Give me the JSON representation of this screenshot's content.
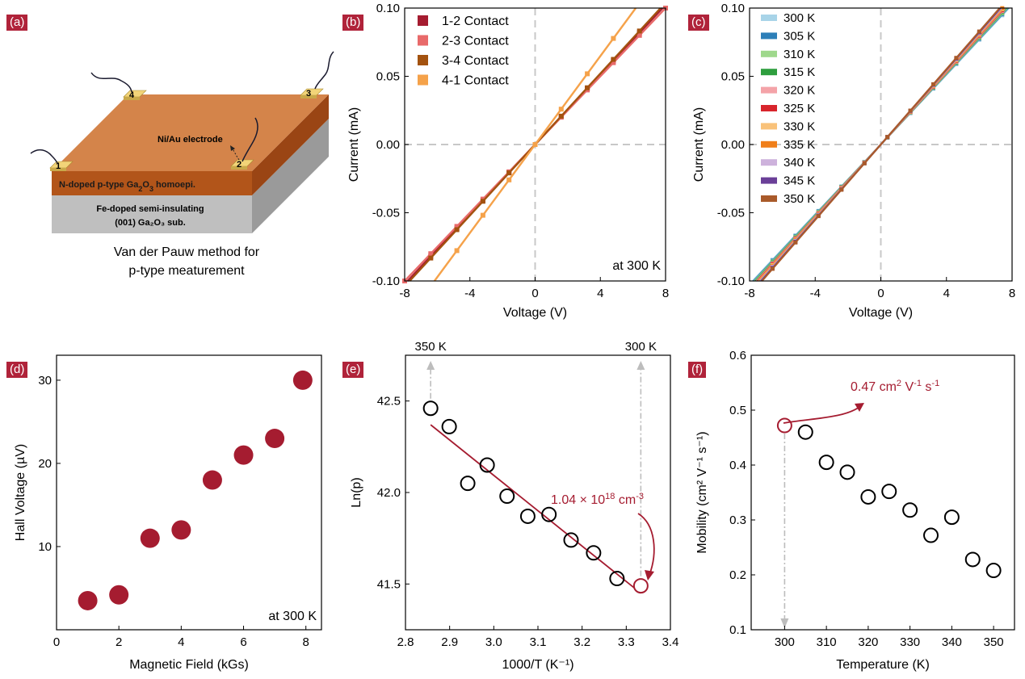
{
  "colors": {
    "accent": "#a51c30",
    "axis": "#000000",
    "dashed": "#c8c8c8",
    "orange_top": "#d4844a",
    "orange_side": "#b2551a",
    "gray_top": "#bfbfbf",
    "gray_side": "#9a9a9a",
    "contact": "#f2d478"
  },
  "panel_labels": [
    "(a)",
    "(b)",
    "(c)",
    "(d)",
    "(e)",
    "(f)"
  ],
  "schematic": {
    "contacts": [
      "1",
      "2",
      "3",
      "4"
    ],
    "electrode_label": "Ni/Au electrode",
    "layer_top_pre": "N-doped p-type Ga",
    "layer_top_sub1": "2",
    "layer_top_mid": "O",
    "layer_top_sub2": "3",
    "layer_top_post": " homoepi.",
    "layer_bottom_line1": "Fe-doped semi-insulating",
    "layer_bottom_line2": "(001) Ga₂O₃ sub.",
    "caption_line1": "Van der Pauw method for",
    "caption_line2": "p-type meaturement"
  },
  "chart_data": [
    {
      "id": "b",
      "type": "line",
      "xlabel": "Voltage (V)",
      "ylabel": "Current (mA)",
      "xlim": [
        -8,
        8
      ],
      "ylim": [
        -0.1,
        0.1
      ],
      "xticks": [
        "-8",
        "-4",
        "0",
        "4",
        "8"
      ],
      "yticks": [
        "0.10",
        "0.05",
        "0.00",
        "-0.05",
        "-0.10"
      ],
      "annotation": "at 300 K",
      "legend_position": "top-left",
      "series": [
        {
          "name": "1-2 Contact",
          "color": "#a51c30",
          "slope": 0.0128
        },
        {
          "name": "2-3 Contact",
          "color": "#e86a6a",
          "slope": 0.0125
        },
        {
          "name": "3-4 Contact",
          "color": "#a3520f",
          "slope": 0.013
        },
        {
          "name": "4-1 Contact",
          "color": "#f5a24a",
          "slope": 0.0162
        }
      ]
    },
    {
      "id": "c",
      "type": "line",
      "xlabel": "Voltage (V)",
      "ylabel": "Current (mA)",
      "xlim": [
        -8,
        8
      ],
      "ylim": [
        -0.1,
        0.1
      ],
      "xticks": [
        "-8",
        "-4",
        "0",
        "4",
        "8"
      ],
      "yticks": [
        "0.10",
        "0.05",
        "0.00",
        "-0.05",
        "-0.10"
      ],
      "legend_position": "top-left",
      "series": [
        {
          "name": "300 K",
          "color": "#a8d4e8",
          "slope": 0.0128
        },
        {
          "name": "305 K",
          "color": "#2d7fb8",
          "slope": 0.0129
        },
        {
          "name": "310 K",
          "color": "#9fd88c",
          "slope": 0.013
        },
        {
          "name": "315 K",
          "color": "#2e9e3e",
          "slope": 0.0131
        },
        {
          "name": "320 K",
          "color": "#f4a3a8",
          "slope": 0.0132
        },
        {
          "name": "325 K",
          "color": "#d8252c",
          "slope": 0.0133
        },
        {
          "name": "330 K",
          "color": "#f9c27a",
          "slope": 0.0134
        },
        {
          "name": "335 K",
          "color": "#f07f1a",
          "slope": 0.0135
        },
        {
          "name": "340 K",
          "color": "#cdb2dc",
          "slope": 0.0136
        },
        {
          "name": "345 K",
          "color": "#6a3f98",
          "slope": 0.0137
        },
        {
          "name": "350 K",
          "color": "#a95a2a",
          "slope": 0.0138
        }
      ]
    },
    {
      "id": "d",
      "type": "scatter",
      "xlabel": "Magnetic Field (kGs)",
      "ylabel": "Hall Voltage (µV)",
      "xlim": [
        0,
        8.5
      ],
      "ylim": [
        0,
        33
      ],
      "xticks": [
        "0",
        "2",
        "4",
        "6",
        "8"
      ],
      "yticks": [
        "10",
        "20",
        "30"
      ],
      "annotation": "at 300 K",
      "x": [
        1,
        2,
        3,
        4,
        5,
        6,
        7,
        7.9
      ],
      "y": [
        3.5,
        4.2,
        11,
        12,
        18,
        21,
        23,
        30
      ]
    },
    {
      "id": "e",
      "type": "scatter",
      "xlabel": "1000/T (K⁻¹)",
      "ylabel": "Ln(p)",
      "xlim": [
        2.8,
        3.4
      ],
      "ylim": [
        41.25,
        42.75
      ],
      "xticks": [
        "2.8",
        "2.9",
        "3.0",
        "3.1",
        "3.2",
        "3.3",
        "3.4"
      ],
      "yticks": [
        "42.5",
        "42.0",
        "41.5"
      ],
      "top_label_left": "350 K",
      "top_label_right": "300 K",
      "annotation_pre": "1.04 × 10",
      "annotation_sup": "18",
      "annotation_mid": " cm",
      "annotation_sup2": "-3",
      "x": [
        2.857,
        2.899,
        2.941,
        2.985,
        3.03,
        3.077,
        3.125,
        3.175,
        3.226,
        3.279
      ],
      "y": [
        42.46,
        42.36,
        42.05,
        42.15,
        41.98,
        41.87,
        41.88,
        41.74,
        41.67,
        41.53
      ],
      "highlight": {
        "x": 3.333,
        "y": 41.49
      },
      "fit": {
        "x": [
          2.857,
          3.333
        ],
        "y": [
          42.37,
          41.45
        ]
      }
    },
    {
      "id": "f",
      "type": "scatter",
      "xlabel": "Temperature (K)",
      "ylabel": "Mobility (cm² V⁻¹ s⁻¹)",
      "xlim": [
        292,
        355
      ],
      "ylim": [
        0.1,
        0.6
      ],
      "xticks": [
        "300",
        "310",
        "320",
        "330",
        "340",
        "350"
      ],
      "yticks": [
        "0.6",
        "0.5",
        "0.4",
        "0.3",
        "0.2",
        "0.1"
      ],
      "annotation_pre": "0.47 cm",
      "annotation_sup": "2",
      "annotation_mid": " V",
      "annotation_sup2": "-1",
      "annotation_mid2": " s",
      "annotation_sup3": "-1",
      "x": [
        305,
        310,
        315,
        320,
        325,
        330,
        335,
        340,
        345,
        350
      ],
      "y": [
        0.46,
        0.405,
        0.387,
        0.342,
        0.352,
        0.318,
        0.272,
        0.305,
        0.228,
        0.208
      ],
      "highlight": {
        "x": 300,
        "y": 0.472
      }
    }
  ]
}
